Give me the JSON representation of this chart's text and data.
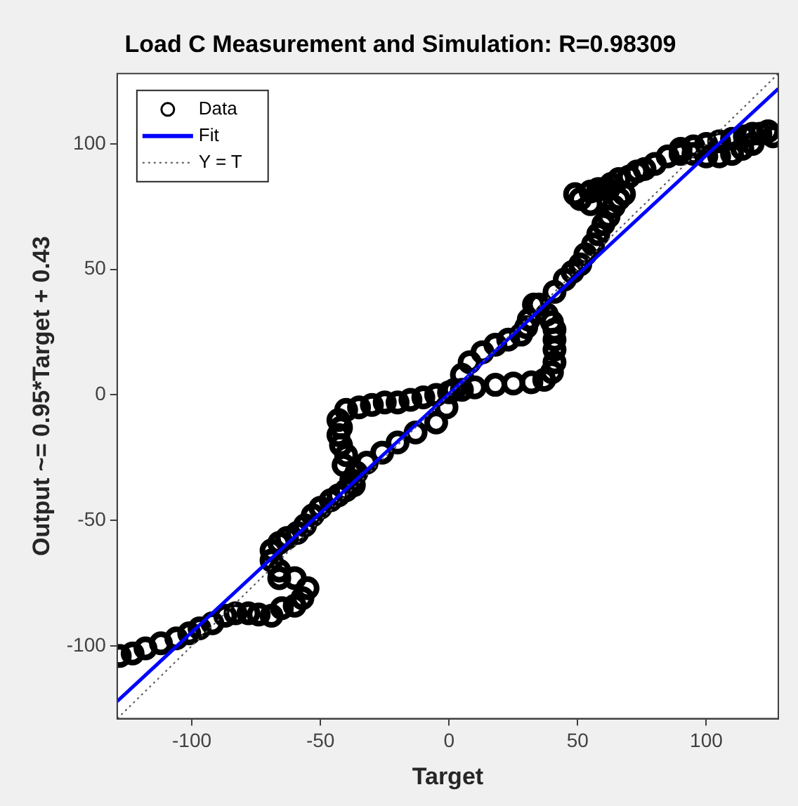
{
  "chart_data": {
    "type": "scatter",
    "title": "Load C Measurement and Simulation: R=0.98309",
    "xlabel": "Target",
    "ylabel": "Output ~= 0.95*Target + 0.43",
    "xlim": [
      -129,
      128
    ],
    "ylim": [
      -129,
      128
    ],
    "xticks": [
      -100,
      -50,
      0,
      50,
      100
    ],
    "yticks": [
      -100,
      -50,
      0,
      50,
      100
    ],
    "grid": false,
    "legend": "top left",
    "series": [
      {
        "name": "Data",
        "marker": "circle",
        "color": "#000000",
        "x": [
          -128,
          -118,
          -106,
          -97,
          -87,
          -78,
          -69,
          -60,
          -55,
          -60,
          -66,
          -69,
          -69,
          -63,
          -56,
          -50,
          -43,
          -37,
          -36,
          -40,
          -43,
          -43,
          -40,
          -30,
          -15,
          -5,
          5,
          18,
          32,
          40,
          41,
          41,
          38,
          35,
          41,
          45,
          51,
          56,
          60,
          64,
          68,
          62,
          55,
          51,
          55,
          60,
          66,
          73,
          80,
          90,
          100,
          110,
          118,
          124,
          126,
          118,
          110,
          100,
          90,
          -32,
          -20,
          -5,
          2,
          8,
          18,
          28,
          31,
          33,
          -123,
          -112,
          -101,
          -92,
          -83,
          -74,
          -65,
          -57,
          -66,
          -66,
          -59,
          -53,
          -46,
          -40,
          -38,
          -41,
          -42,
          -42,
          -35,
          -25,
          -20,
          -10,
          0,
          10,
          25,
          37,
          41,
          41,
          40,
          48,
          53,
          58,
          62,
          66,
          58,
          49,
          63,
          70,
          76,
          85,
          95,
          105,
          115,
          121,
          114,
          105,
          95,
          -26,
          -13,
          -1,
          5,
          13,
          23,
          30
        ],
        "values": [
          -104,
          -101,
          -97,
          -93,
          -88,
          -87,
          -88,
          -84,
          -77,
          -73,
          -73,
          -66,
          -62,
          -57,
          -52,
          -45,
          -40,
          -36,
          -31,
          -24,
          -16,
          -10,
          -6,
          -4,
          -2,
          0,
          2,
          4,
          5,
          9,
          18,
          26,
          32,
          36,
          41,
          46,
          52,
          60,
          68,
          75,
          80,
          82,
          81,
          78,
          76,
          82,
          86,
          89,
          92,
          98,
          100,
          102,
          104,
          105,
          103,
          100,
          96,
          95,
          96,
          -27,
          -19,
          -11,
          2,
          13,
          20,
          24,
          30,
          36,
          -103,
          -99,
          -95,
          -91,
          -87,
          -87.5,
          -85,
          -81,
          -70,
          -59,
          -55,
          -48,
          -42,
          -38,
          -34,
          -28,
          -20,
          -13,
          -5,
          -3,
          -3,
          -1,
          1,
          3,
          4.5,
          6,
          13,
          22,
          29,
          49,
          56,
          64,
          71,
          78,
          82,
          80,
          84,
          87,
          90,
          95,
          99,
          101,
          103,
          104,
          98,
          95,
          96,
          -23,
          -15,
          -5,
          8,
          17,
          22,
          27
        ]
      },
      {
        "name": "Fit",
        "type": "line",
        "marker": "none",
        "line_style": "solid",
        "color": "#0000ff",
        "x": [
          -129,
          128
        ],
        "values": [
          -122.1,
          122
        ]
      },
      {
        "name": "Y = T",
        "type": "line",
        "marker": "none",
        "line_style": "dotted",
        "color": "#555555",
        "x": [
          -129,
          128
        ],
        "values": [
          -129,
          128
        ]
      }
    ]
  }
}
